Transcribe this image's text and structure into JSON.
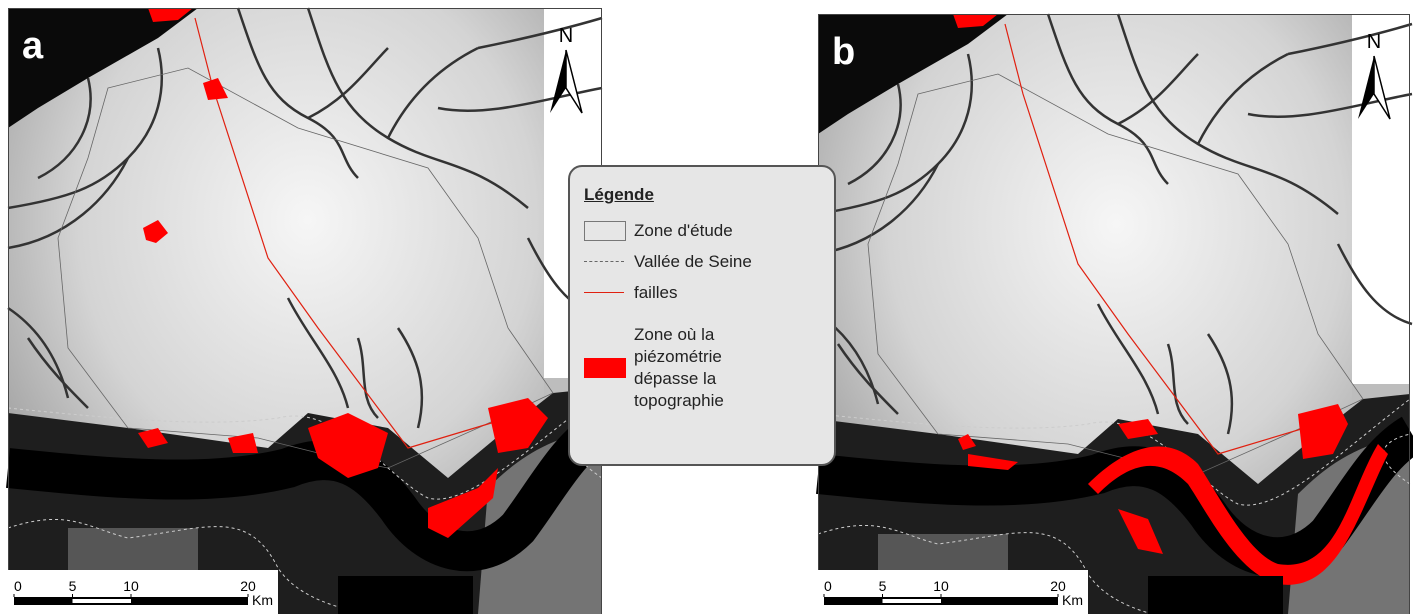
{
  "panels": [
    {
      "label": "a",
      "north": "N",
      "scale": {
        "ticks": [
          0,
          5,
          10,
          20
        ],
        "unit": "Km"
      }
    },
    {
      "label": "b",
      "north": "N",
      "scale": {
        "ticks": [
          0,
          5,
          10,
          20
        ],
        "unit": "Km"
      }
    }
  ],
  "legend": {
    "title": "Légende",
    "items": [
      "Zone d'étude",
      "Vallée de Seine",
      "failles",
      "Zone où la piézométrie dépasse la topographie"
    ]
  }
}
